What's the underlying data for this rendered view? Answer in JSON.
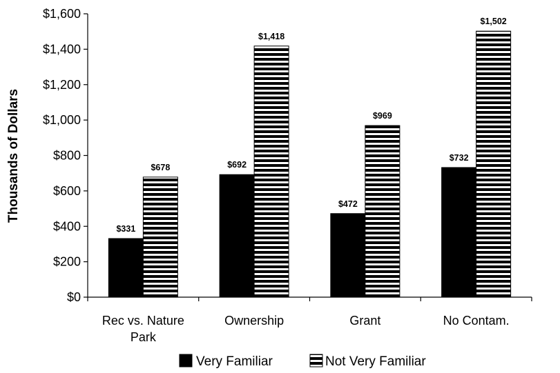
{
  "chart_data": {
    "type": "bar",
    "title": "",
    "xlabel": "",
    "ylabel": "Thousands of Dollars",
    "ylim": [
      0,
      1600
    ],
    "yticks": [
      0,
      200,
      400,
      600,
      800,
      1000,
      1200,
      1400,
      1600
    ],
    "ytick_labels": [
      "$0",
      "$200",
      "$400",
      "$600",
      "$800",
      "$1,000",
      "$1,200",
      "$1,400",
      "$1,600"
    ],
    "categories": [
      [
        "Rec vs. Nature",
        "Park"
      ],
      [
        "Ownership"
      ],
      [
        "Grant"
      ],
      [
        "No Contam."
      ]
    ],
    "series": [
      {
        "name": "Very Familiar",
        "values": [
          331,
          692,
          472,
          732
        ],
        "labels": [
          "$331",
          "$692",
          "$472",
          "$732"
        ],
        "fill": "solid",
        "color": "#000000"
      },
      {
        "name": "Not Very Familiar",
        "values": [
          678,
          1418,
          969,
          1502
        ],
        "labels": [
          "$678",
          "$1,418",
          "$969",
          "$1,502"
        ],
        "fill": "horizontal-stripes",
        "color": "#000000"
      }
    ],
    "grid": false,
    "legend_position": "bottom"
  }
}
